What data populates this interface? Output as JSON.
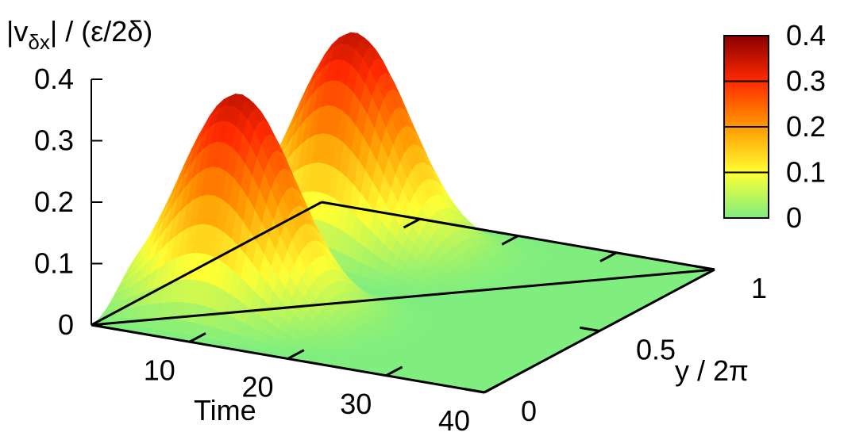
{
  "chart_data": {
    "type": "surface3d",
    "z_title": "|vδx| / (ε/2δ)",
    "z_title_parts": {
      "a": "|v",
      "sub": "δx",
      "b": "| / (ε/2δ)"
    },
    "x_title": "Time",
    "y_title": "y / 2π",
    "x_range": [
      0,
      40
    ],
    "y_range": [
      0,
      1
    ],
    "z_range": [
      0,
      0.4
    ],
    "x_ticks": [
      10,
      20,
      30,
      40
    ],
    "x_tick_labels": [
      "10",
      "20",
      "30",
      "40"
    ],
    "y_ticks": [
      0,
      0.5,
      1
    ],
    "y_tick_labels": [
      "0",
      "0.5",
      "1"
    ],
    "z_ticks": [
      0,
      0.1,
      0.2,
      0.3,
      0.4
    ],
    "z_tick_labels": [
      "0",
      "0.1",
      "0.2",
      "0.3",
      "0.4"
    ],
    "colorbar": {
      "ticks": [
        0,
        0.1,
        0.2,
        0.3,
        0.4
      ],
      "tick_labels": [
        "0",
        "0.1",
        "0.2",
        "0.3",
        "0.4"
      ],
      "colors": [
        "#7fee7f",
        "#ffff33",
        "#ff9900",
        "#ff2a00",
        "#8b0000"
      ]
    },
    "peaks": [
      {
        "y": 0.25,
        "x_peak": 9,
        "z_peak": 0.35
      },
      {
        "y": 0.75,
        "x_peak": 9,
        "z_peak": 0.35
      }
    ]
  }
}
